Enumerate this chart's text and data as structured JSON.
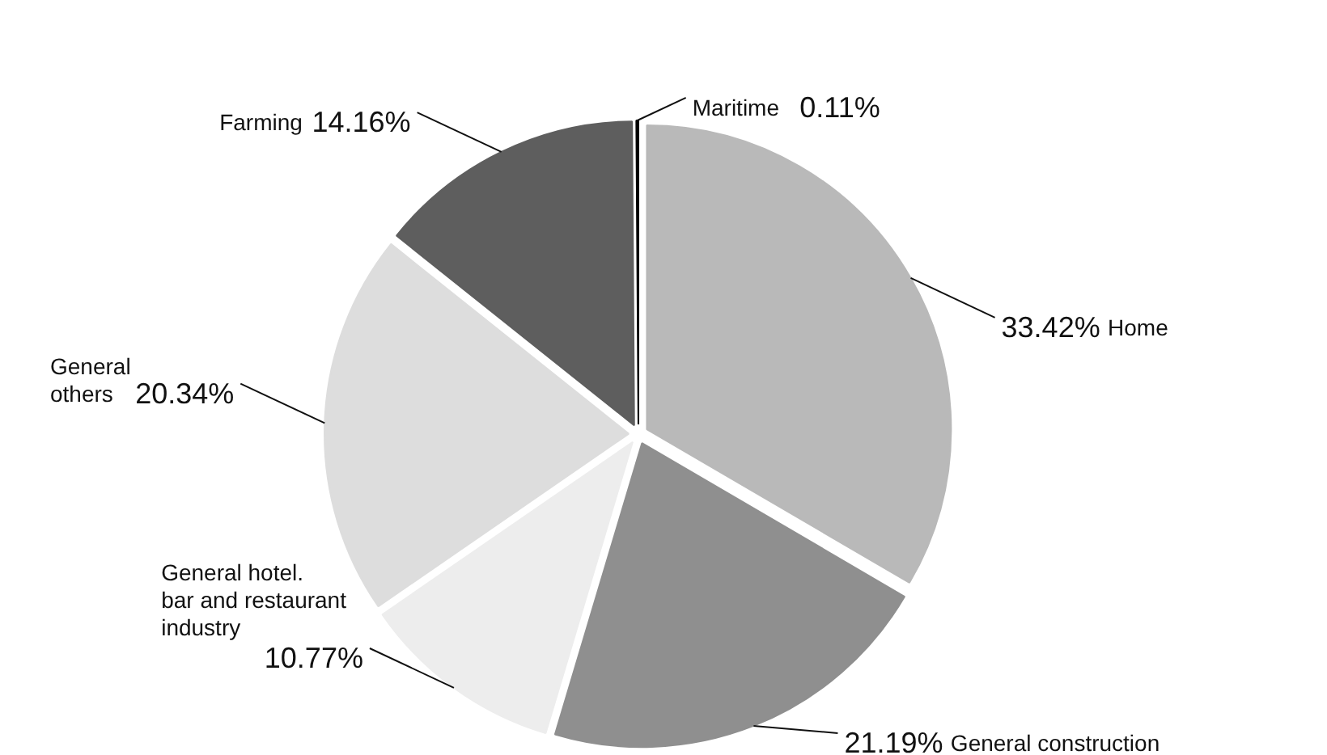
{
  "chart_data": {
    "type": "pie",
    "categories": [
      "Home",
      "General construction",
      "General hotel.\nbar and restaurant\nindustry",
      "General\nothers",
      "Farming",
      "Maritime"
    ],
    "values": [
      33.42,
      21.19,
      10.77,
      20.34,
      14.16,
      0.11
    ],
    "value_labels": [
      "33.42%",
      "21.19%",
      "10.77%",
      "20.34%",
      "14.16%",
      "0.11%"
    ],
    "colors": [
      "#b9b9b9",
      "#8f8f8f",
      "#ededed",
      "#dddddd",
      "#5e5e5e",
      "#000000"
    ]
  }
}
